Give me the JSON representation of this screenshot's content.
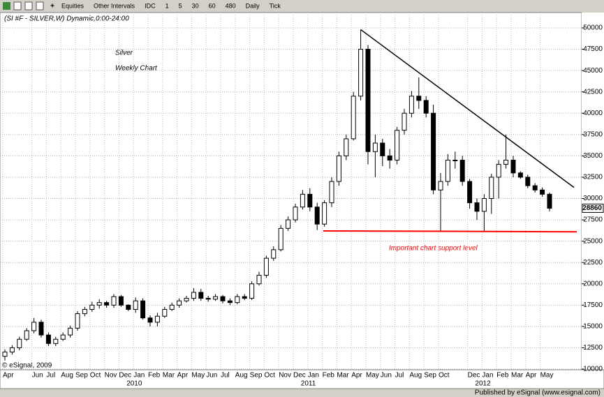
{
  "toolbar": {
    "items": [
      "Equities",
      "Other Intervals",
      "IDC",
      "1",
      "5",
      "30",
      "60",
      "480",
      "Daily",
      "Tick"
    ]
  },
  "chart_data": {
    "type": "candlestick",
    "header": "(SI #F - SILVER,W) Dynamic,0:00-24:00",
    "title": "Silver",
    "subtitle": "Weekly Chart",
    "annotation": "Important chart support level",
    "categories": [
      "Apr",
      null,
      null,
      null,
      "Jun",
      null,
      "Jul",
      null,
      "Aug",
      null,
      "Sep",
      null,
      "Oct",
      null,
      "Nov",
      null,
      "Dec",
      null,
      "Jan",
      null,
      "Feb",
      null,
      "Mar",
      null,
      "Apr",
      null,
      "May",
      null,
      "Jun",
      null,
      "Jul",
      null,
      "Aug",
      null,
      "Sep",
      null,
      "Oct",
      null,
      "Nov",
      null,
      "Dec",
      null,
      "Jan",
      null,
      "Feb",
      null,
      "Mar",
      null,
      "Apr",
      null,
      "May",
      null,
      "Jun",
      null,
      "Jul",
      null,
      "Aug",
      null,
      "Sep",
      null,
      "Oct",
      null,
      null,
      null,
      "Dec",
      null,
      "Jan",
      null,
      "Feb",
      null,
      "Mar",
      null,
      "Apr",
      null,
      "May",
      null
    ],
    "years": [
      "2010",
      "2011",
      "2012"
    ],
    "open": [
      11500,
      12000,
      12500,
      13500,
      14500,
      15500,
      14000,
      13000,
      13500,
      14000,
      14800,
      16500,
      17000,
      17500,
      17800,
      17500,
      18500,
      17500,
      17000,
      18000,
      16000,
      15500,
      16200,
      17000,
      17500,
      18000,
      18300,
      19000,
      18300,
      18200,
      18500,
      18000,
      17800,
      18500,
      18300,
      20000,
      21000,
      23000,
      24000,
      26500,
      27500,
      29000,
      30500,
      29000,
      27000,
      29500,
      32000,
      35000,
      37000,
      42000,
      47500,
      35500,
      36500,
      35000,
      34500,
      38000,
      40000,
      42000,
      41500,
      40000,
      31000,
      32000,
      34500,
      34500,
      32000,
      29500,
      28500,
      30000,
      32500,
      34000,
      34500,
      33000,
      32500,
      31500,
      31000,
      30500
    ],
    "high": [
      12300,
      12800,
      13800,
      14800,
      16000,
      15800,
      14300,
      13800,
      14300,
      15100,
      16800,
      17300,
      17900,
      18200,
      18000,
      18800,
      18700,
      17600,
      18400,
      18300,
      16300,
      16600,
      17300,
      17800,
      18300,
      18600,
      19500,
      19400,
      18600,
      18800,
      18700,
      18300,
      18800,
      18800,
      20300,
      21400,
      23300,
      24400,
      26900,
      27900,
      29400,
      31000,
      31200,
      29500,
      29800,
      32500,
      35500,
      37500,
      42500,
      49800,
      48000,
      37500,
      37000,
      35800,
      38400,
      40500,
      42600,
      44200,
      42000,
      41000,
      33000,
      35200,
      35500,
      35000,
      32300,
      30000,
      30500,
      32900,
      34500,
      37500,
      35000,
      33200,
      32800,
      31800,
      31300,
      30700
    ],
    "low": [
      11000,
      11700,
      12200,
      13300,
      14200,
      13700,
      12700,
      12700,
      13300,
      13700,
      14500,
      16200,
      16700,
      17100,
      17200,
      17200,
      17300,
      16800,
      16600,
      15800,
      15000,
      15000,
      16000,
      16800,
      17200,
      17800,
      18000,
      18000,
      17900,
      18000,
      17700,
      17500,
      17600,
      18100,
      18100,
      19800,
      20700,
      22700,
      23800,
      26200,
      27200,
      28700,
      28500,
      26300,
      26700,
      29000,
      31500,
      34500,
      36800,
      41500,
      34000,
      32500,
      33800,
      33500,
      34000,
      37500,
      39500,
      40500,
      39500,
      30500,
      26100,
      31500,
      33500,
      31500,
      28800,
      27500,
      26200,
      28200,
      30000,
      33500,
      32500,
      32300,
      31200,
      30700,
      30200,
      28500
    ],
    "close": [
      12000,
      12500,
      13500,
      14500,
      15500,
      14000,
      13000,
      13500,
      14000,
      14800,
      16500,
      17000,
      17500,
      17800,
      17500,
      18500,
      17500,
      17000,
      18000,
      16000,
      15500,
      16200,
      17000,
      17500,
      18000,
      18300,
      19000,
      18300,
      18200,
      18500,
      18000,
      17800,
      18500,
      18300,
      20000,
      21000,
      23000,
      24000,
      26500,
      27500,
      29000,
      30500,
      29000,
      27000,
      29500,
      32000,
      35000,
      37000,
      42000,
      47500,
      35500,
      36500,
      35000,
      34500,
      38000,
      40000,
      42000,
      41500,
      40000,
      31000,
      32000,
      34500,
      34500,
      32000,
      29500,
      28500,
      30000,
      32500,
      34000,
      34500,
      33000,
      32500,
      31500,
      31000,
      30500,
      28860
    ],
    "ylim": [
      9920,
      51800
    ],
    "yticks": [
      10000,
      12500,
      15000,
      17500,
      20000,
      22500,
      25000,
      27500,
      30000,
      32500,
      35000,
      37500,
      40000,
      42500,
      45000,
      47500,
      50000
    ],
    "grid": true,
    "up_color": "#ffffff",
    "down_color": "#000000",
    "trendlines": [
      {
        "color": "#000000",
        "y_start": 49800,
        "y_end": 31300
      },
      {
        "color": "#ff0000",
        "y_start": 26200,
        "y_end": 26100
      }
    ],
    "footer": "Published by eSignal (www.esignal.com)",
    "copyright": "© eSignal, 2009"
  }
}
